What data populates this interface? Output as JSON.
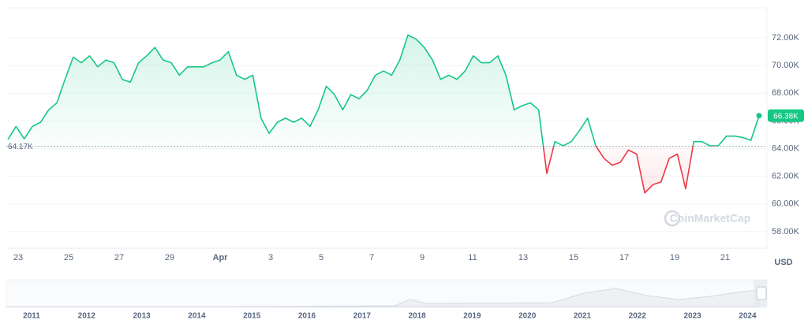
{
  "chart_data": {
    "type": "line",
    "values": [
      64660,
      65600,
      64700,
      65600,
      65900,
      66800,
      67300,
      69000,
      70600,
      70200,
      70700,
      69900,
      70400,
      70200,
      69000,
      68800,
      70200,
      70700,
      71300,
      70400,
      70200,
      69300,
      69900,
      69900,
      69900,
      70200,
      70400,
      71000,
      69300,
      69000,
      69300,
      66200,
      65100,
      65900,
      66200,
      65900,
      66200,
      65600,
      66800,
      68500,
      67900,
      66800,
      67900,
      67600,
      68200,
      69300,
      69600,
      69300,
      70400,
      72200,
      71900,
      71300,
      70400,
      69000,
      69300,
      69000,
      69600,
      70700,
      70200,
      70200,
      70700,
      69300,
      66800,
      67100,
      67300,
      66800,
      62200,
      64500,
      64200,
      64500,
      65300,
      66200,
      64200,
      63300,
      62800,
      63000,
      63900,
      63600,
      60800,
      61400,
      61600,
      63300,
      63600,
      61100,
      64500,
      64500,
      64200,
      64200,
      64900,
      64900,
      64800,
      64600,
      66380
    ],
    "color_up": "#16c784",
    "color_down": "#ea3943",
    "ylim": [
      56800,
      74160
    ],
    "yticks": [
      {
        "value": 58000,
        "label": "58.00K"
      },
      {
        "value": 60000,
        "label": "60.00K"
      },
      {
        "value": 62000,
        "label": "62.00K"
      },
      {
        "value": 64000,
        "label": "64.00K"
      },
      {
        "value": 66000,
        "label": "66.00K"
      },
      {
        "value": 68000,
        "label": "68.00K"
      },
      {
        "value": 70000,
        "label": "70.00K"
      },
      {
        "value": 72000,
        "label": "72.00K"
      }
    ],
    "grid": true,
    "baseline": {
      "value": 64170,
      "label": "64.17K"
    },
    "last": {
      "value": 66380,
      "label": "66.38K"
    },
    "x_labels": [
      "23",
      "25",
      "27",
      "29",
      "Apr",
      "3",
      "5",
      "7",
      "9",
      "11",
      "13",
      "15",
      "17",
      "19",
      "21"
    ],
    "y_label": "USD",
    "watermark": "CoinMarketCap",
    "navigator": {
      "labels": [
        "2011",
        "2012",
        "2013",
        "2014",
        "2015",
        "2016",
        "2017",
        "2018",
        "2019",
        "2020",
        "2021",
        "2022",
        "2023",
        "2024"
      ]
    }
  }
}
